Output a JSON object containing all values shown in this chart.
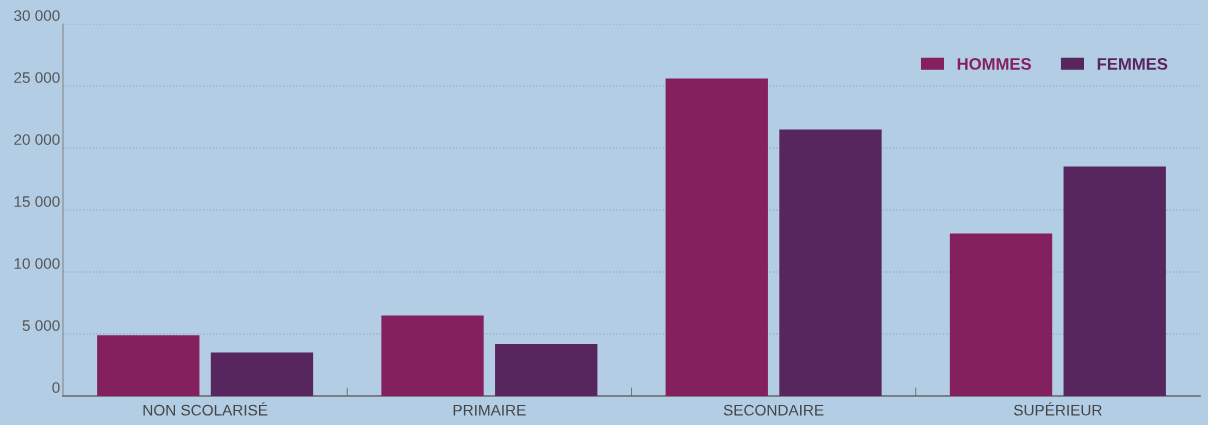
{
  "chart_data": {
    "type": "bar",
    "categories": [
      "NON SCOLARISÉ",
      "PRIMAIRE",
      "SECONDAIRE",
      "SUPÉRIEUR"
    ],
    "series": [
      {
        "name": "HOMMES",
        "color": "#84205e",
        "values": [
          4900,
          6500,
          25600,
          13100
        ]
      },
      {
        "name": "FEMMES",
        "color": "#58265e",
        "values": [
          3500,
          4200,
          21500,
          18500
        ]
      }
    ],
    "ylim": [
      0,
      30000
    ],
    "yticks": [
      {
        "value": 0,
        "label": "0"
      },
      {
        "value": 5000,
        "label": "5 000"
      },
      {
        "value": 10000,
        "label": "10 000"
      },
      {
        "value": 15000,
        "label": "15 000"
      },
      {
        "value": 20000,
        "label": "20 000"
      },
      {
        "value": 25000,
        "label": "25 000"
      },
      {
        "value": 30000,
        "label": "30 000"
      }
    ],
    "grid": "y",
    "legend": "top right"
  }
}
